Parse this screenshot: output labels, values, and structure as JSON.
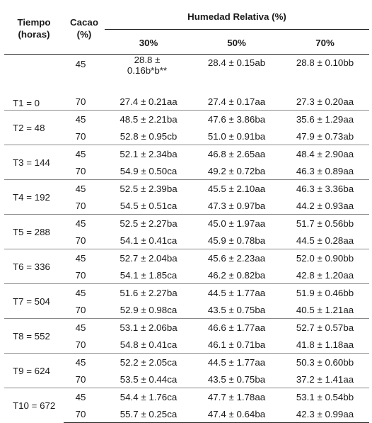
{
  "header": {
    "tiempo_line1": "Tiempo",
    "tiempo_line2": "(horas)",
    "cacao_line1": "Cacao",
    "cacao_line2": "(%)",
    "humedad": "Humedad Relativa (%)",
    "h30": "30%",
    "h50": "50%",
    "h70": "70%"
  },
  "rows": [
    {
      "time": "T1 = 0",
      "a": {
        "cacao": "45",
        "v30": "28.8 ± 0.16b*b**",
        "v30_l1": "28.8 ±",
        "v30_l2": "0.16b*b**",
        "v50": "28.4 ± 0.15ab",
        "v70": "28.8 ± 0.10bb"
      },
      "b": {
        "cacao": "70",
        "v30": "27.4 ± 0.21aa",
        "v50": "27.4 ± 0.17aa",
        "v70": "27.3 ± 0.20aa"
      }
    },
    {
      "time": "T2 = 48",
      "a": {
        "cacao": "45",
        "v30": "48.5 ± 2.21ba",
        "v50": "47.6 ± 3.86ba",
        "v70": "35.6 ± 1.29aa"
      },
      "b": {
        "cacao": "70",
        "v30": "52.8 ± 0.95cb",
        "v50": "51.0 ± 0.91ba",
        "v70": "47.9 ± 0.73ab"
      }
    },
    {
      "time": "T3 = 144",
      "a": {
        "cacao": "45",
        "v30": "52.1 ± 2.34ba",
        "v50": "46.8 ± 2.65aa",
        "v70": "48.4 ± 2.90aa"
      },
      "b": {
        "cacao": "70",
        "v30": "54.9 ± 0.50ca",
        "v50": "49.2 ± 0.72ba",
        "v70": "46.3 ± 0.89aa"
      }
    },
    {
      "time": "T4 = 192",
      "a": {
        "cacao": "45",
        "v30": "52.5 ± 2.39ba",
        "v50": "45.5 ± 2.10aa",
        "v70": "46.3 ± 3.36ba"
      },
      "b": {
        "cacao": "70",
        "v30": "54.5 ± 0.51ca",
        "v50": "47.3 ± 0.97ba",
        "v70": "44.2 ± 0.93aa"
      }
    },
    {
      "time": "T5 = 288",
      "a": {
        "cacao": "45",
        "v30": "52.5 ± 2.27ba",
        "v50": "45.0 ± 1.97aa",
        "v70": "51.7 ± 0.56bb"
      },
      "b": {
        "cacao": "70",
        "v30": "54.1 ± 0.41ca",
        "v50": "45.9 ± 0.78ba",
        "v70": "44.5 ± 0.28aa"
      }
    },
    {
      "time": "T6 = 336",
      "a": {
        "cacao": "45",
        "v30": "52.7 ± 2.04ba",
        "v50": "45.6 ± 2.23aa",
        "v70": "52.0 ± 0.90bb"
      },
      "b": {
        "cacao": "70",
        "v30": "54.1 ± 1.85ca",
        "v50": "46.2 ± 0.82ba",
        "v70": "42.8 ± 1.20aa"
      }
    },
    {
      "time": "T7 = 504",
      "a": {
        "cacao": "45",
        "v30": "51.6 ± 2.27ba",
        "v50": "44.5 ± 1.77aa",
        "v70": "51.9 ± 0.46bb"
      },
      "b": {
        "cacao": "70",
        "v30": "52.9 ± 0.98ca",
        "v50": "43.5 ± 0.75ba",
        "v70": "40.5 ± 1.21aa"
      }
    },
    {
      "time": "T8 = 552",
      "a": {
        "cacao": "45",
        "v30": "53.1 ± 2.06ba",
        "v50": "46.6 ± 1.77aa",
        "v70": "52.7 ± 0.57ba"
      },
      "b": {
        "cacao": "70",
        "v30": "54.8 ± 0.41ca",
        "v50": "46.1 ± 0.71ba",
        "v70": "41.8 ± 1.18aa"
      }
    },
    {
      "time": "T9 = 624",
      "a": {
        "cacao": "45",
        "v30": "52.2 ± 2.05ca",
        "v50": "44.5 ± 1.77aa",
        "v70": "50.3 ± 0.60bb"
      },
      "b": {
        "cacao": "70",
        "v30": "53.5 ± 0.44ca",
        "v50": "43.5 ± 0.75ba",
        "v70": "37.2 ± 1.41aa"
      }
    },
    {
      "time": "T10 = 672",
      "a": {
        "cacao": "45",
        "v30": "54.4 ± 1.76ca",
        "v50": "47.7 ± 1.78aa",
        "v70": "53.1 ± 0.54bb"
      },
      "b": {
        "cacao": "70",
        "v30": "55.7 ± 0.25ca",
        "v50": "47.4 ± 0.64ba",
        "v70": "42.3 ± 0.99aa"
      }
    }
  ]
}
